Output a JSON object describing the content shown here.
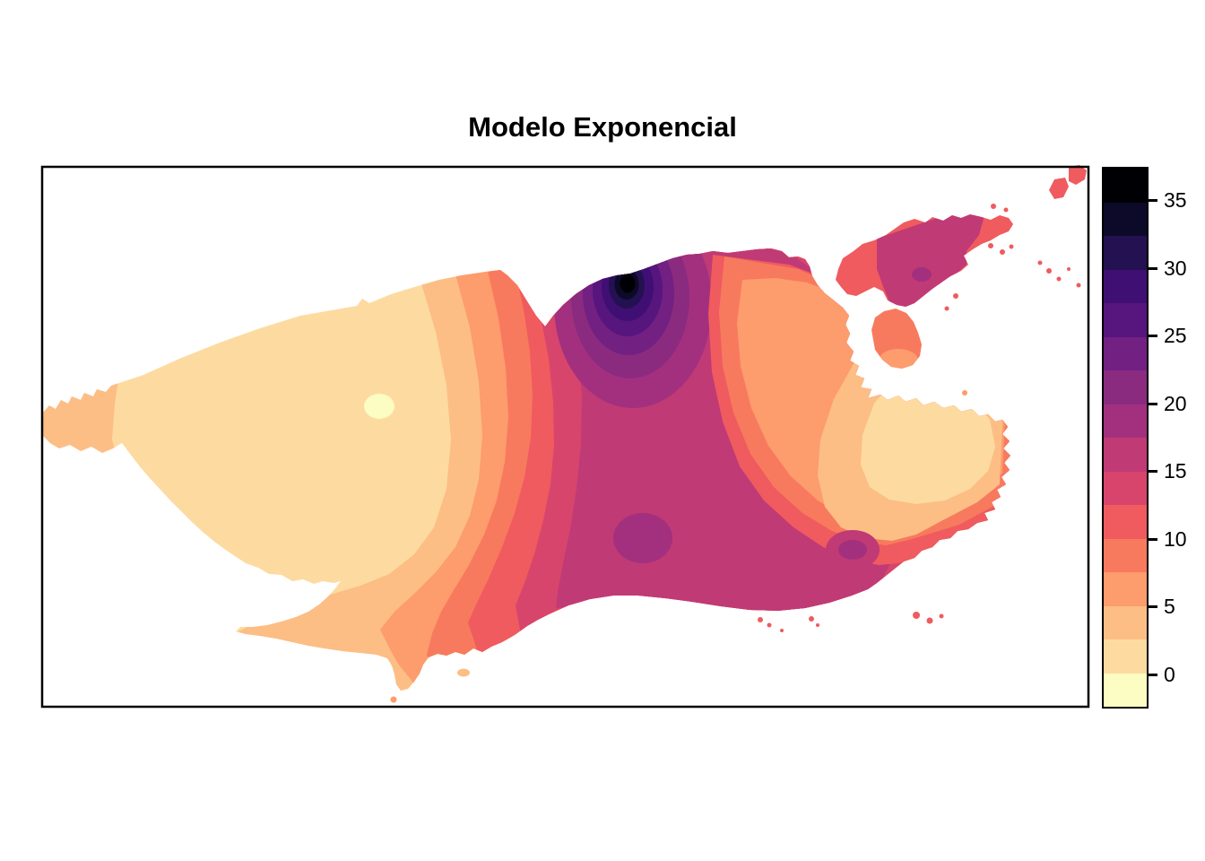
{
  "title": "Modelo Exponencial",
  "legend": {
    "ticks": [
      35,
      30,
      25,
      20,
      15,
      10,
      5,
      0
    ],
    "value_min": -2.5,
    "value_max": 37.5,
    "band_colors_low_to_high": [
      "#FBFDC2",
      "#FDDBA0",
      "#FCBE85",
      "#FD9C6D",
      "#F87A5E",
      "#EF5B5E",
      "#D8456C",
      "#C03A76",
      "#A3307E",
      "#8A2B80",
      "#722082",
      "#57157E",
      "#400F74",
      "#231151",
      "#0C0A28",
      "#000004"
    ]
  },
  "chart_data": {
    "type": "heatmap",
    "subtype": "filled-contour-kriging-surface-map",
    "title": "Modelo Exponencial",
    "region_shape": "Rio de Janeiro municipality with Governador, Fundão and Paquetá islands and small coastal islets",
    "palette": "magma reversed (light = low, dark = high)",
    "value_range": [
      -2.5,
      37.5
    ],
    "contour_interval": 2.5,
    "legend_ticks": [
      35,
      30,
      25,
      20,
      15,
      10,
      5,
      0
    ],
    "legend_position": "right",
    "features": [
      {
        "name": "global-maximum-hotspot",
        "approx_value": 36,
        "location": "north-center coast, concentric rings from black core through purples down to crimson"
      },
      {
        "name": "secondary-high-blob-1",
        "approx_value": 19,
        "location": "south-center, purple ellipse inside broad crimson region"
      },
      {
        "name": "secondary-high-blob-2",
        "approx_value": 19,
        "location": "south coast east, small purple ellipse"
      },
      {
        "name": "broad-high-ridge",
        "approx_value": 16,
        "location": "central-south band, crimson/magenta"
      },
      {
        "name": "governador-island-high",
        "approx_value": 16,
        "location": "northeast island mostly crimson with small purple spot, salmon ends"
      },
      {
        "name": "west-low-plain",
        "approx_value": 1,
        "location": "large cream western half"
      },
      {
        "name": "local-minimum-spot",
        "approx_value": -1,
        "location": "pale yellow ellipse in west plain"
      },
      {
        "name": "southeast-low-basin",
        "approx_value": 1,
        "location": "cream patch near eastern ragged bay coast"
      },
      {
        "name": "west-tip-band",
        "approx_value": 4,
        "location": "light orange westernmost tip"
      }
    ],
    "grid": false
  }
}
